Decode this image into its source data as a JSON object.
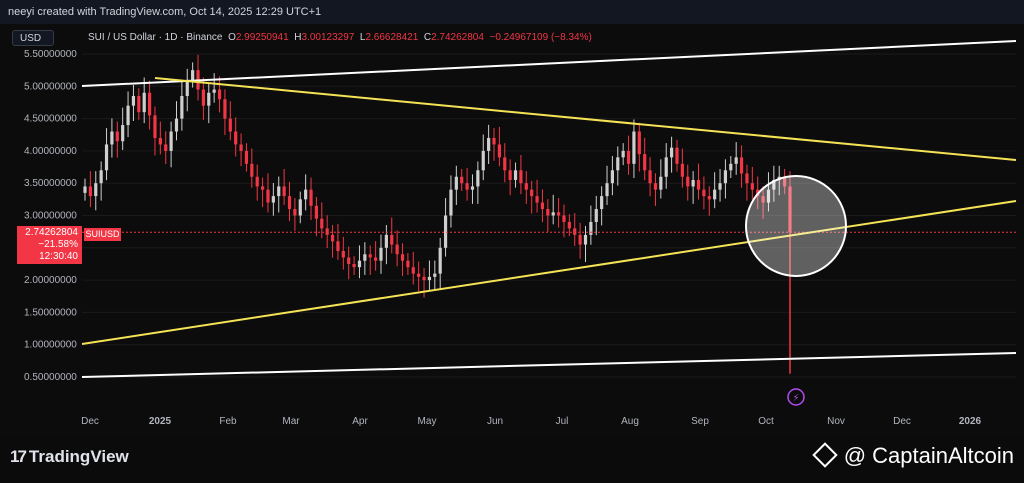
{
  "header": {
    "attribution": "neeyi created with TradingView.com, Oct 14, 2025 12:29 UTC+1"
  },
  "toolbar": {
    "currency_label": "USD"
  },
  "legend": {
    "symbol": "SUI / US Dollar · 1D · Binance",
    "open_label": "O",
    "open": "2.99250941",
    "high_label": "H",
    "high": "3.00123297",
    "low_label": "L",
    "low": "2.66628421",
    "close_label": "C",
    "close": "2.74262804",
    "change": "−0.24967109 (−8.34%)"
  },
  "price_tag": {
    "price": "2.74262804",
    "change_pct": "−21.58%",
    "countdown": "12:30:40",
    "symbol": "SUIUSD"
  },
  "footer": {
    "brand": "TradingView",
    "watermark": "@ CaptainAltcoin"
  },
  "colors": {
    "up": "#cfcfcf",
    "down": "#f23645",
    "trend_white": "#ffffff",
    "trend_yellow": "#f5e356",
    "price_line": "#f23645",
    "circle": "#ffffff"
  },
  "chart_data": {
    "type": "candlestick",
    "title": "SUI / US Dollar · 1D · Binance",
    "y_ticks": [
      "5.50000000",
      "5.00000000",
      "4.50000000",
      "4.00000000",
      "3.50000000",
      "3.00000000",
      "2.50000000",
      "2.00000000",
      "1.50000000",
      "1.00000000",
      "0.50000000"
    ],
    "x_ticks": [
      "Dec",
      "2025",
      "Feb",
      "Mar",
      "Apr",
      "May",
      "Jun",
      "Jul",
      "Aug",
      "Sep",
      "Oct",
      "Nov",
      "Dec",
      "2026"
    ],
    "ylim": [
      0.35,
      5.6
    ],
    "series": [
      {
        "name": "SUIUSD",
        "values": [
          3.45,
          3.3,
          3.5,
          3.7,
          4.1,
          4.3,
          4.15,
          4.4,
          4.7,
          4.85,
          4.6,
          4.9,
          4.55,
          4.2,
          4.1,
          4.0,
          4.3,
          4.5,
          4.85,
          5.1,
          5.25,
          4.95,
          4.7,
          4.9,
          4.95,
          4.8,
          4.5,
          4.3,
          4.1,
          4.0,
          3.8,
          3.6,
          3.45,
          3.4,
          3.2,
          3.3,
          3.45,
          3.3,
          3.1,
          3.0,
          3.25,
          3.4,
          3.15,
          2.95,
          2.8,
          2.7,
          2.6,
          2.45,
          2.35,
          2.25,
          2.2,
          2.3,
          2.4,
          2.35,
          2.3,
          2.5,
          2.7,
          2.55,
          2.4,
          2.3,
          2.2,
          2.1,
          2.05,
          2.0,
          2.05,
          2.1,
          2.5,
          3.0,
          3.4,
          3.6,
          3.5,
          3.4,
          3.45,
          3.7,
          4.0,
          4.2,
          4.1,
          3.9,
          3.7,
          3.55,
          3.7,
          3.5,
          3.4,
          3.3,
          3.2,
          3.1,
          3.0,
          3.05,
          3.0,
          2.9,
          2.8,
          2.7,
          2.55,
          2.7,
          2.9,
          3.1,
          3.3,
          3.5,
          3.7,
          3.9,
          4.0,
          3.8,
          4.3,
          3.95,
          3.7,
          3.5,
          3.4,
          3.6,
          3.9,
          4.05,
          3.8,
          3.6,
          3.45,
          3.55,
          3.4,
          3.3,
          3.25,
          3.4,
          3.5,
          3.7,
          3.8,
          3.9,
          3.65,
          3.5,
          3.4,
          3.3,
          3.2,
          3.4,
          3.55,
          3.6,
          3.45,
          2.74
        ]
      }
    ],
    "flash_crash_low": 0.55,
    "annotations": [
      "ascending broadening channel (white)",
      "symmetrical triangle (yellow)",
      "circle around latest candles"
    ]
  }
}
